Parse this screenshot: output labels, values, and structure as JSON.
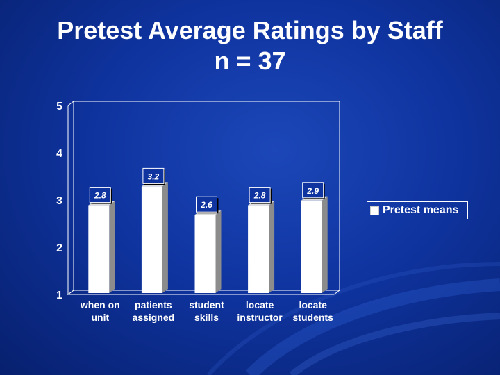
{
  "slide": {
    "title_line1": "Pretest Average Ratings by Staff",
    "title_line2": "n = 37"
  },
  "legend": {
    "label": "Pretest means"
  },
  "colors": {
    "bar": "#ffffff",
    "bar_side": "#8c8c8c",
    "label_text": "#ffffff",
    "grid_frame": "#ffffff"
  },
  "chart_data": {
    "type": "bar",
    "categories": [
      [
        "when on",
        "unit"
      ],
      [
        "patients",
        "assigned"
      ],
      [
        "student",
        "skills"
      ],
      [
        "locate",
        "instructor"
      ],
      [
        "locate",
        "students"
      ]
    ],
    "series": [
      {
        "name": "Pretest means",
        "values": [
          2.8,
          3.2,
          2.6,
          2.8,
          2.9
        ]
      }
    ],
    "data_labels": [
      "2.8",
      "3.2",
      "2.6",
      "2.8",
      "2.9"
    ],
    "y_ticks": [
      "1",
      "2",
      "3",
      "4",
      "5"
    ],
    "ylim": [
      1,
      5
    ],
    "grid": false,
    "legend_position": "right"
  }
}
